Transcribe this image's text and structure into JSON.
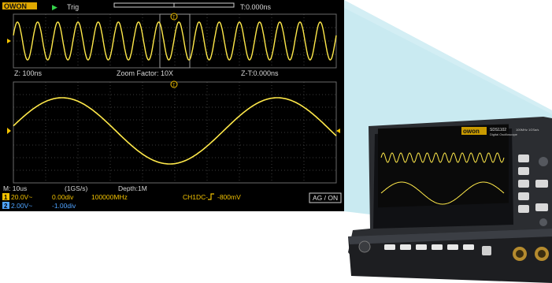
{
  "brand": "OWON",
  "top_bar": {
    "run_state": "▶",
    "trigger_label": "Trig",
    "time_offset": "T:0.000ns"
  },
  "zoom_bar": {
    "z_timebase": "Z: 100ns",
    "zoom_factor": "Zoom Factor: 10X",
    "z_time": "Z-T:0.000ns"
  },
  "status": {
    "main_timebase": "M: 10us",
    "sample_rate": "(1GS/s)",
    "depth": "Depth:1M",
    "ch1": {
      "index": "1",
      "volts": "20.0V~",
      "offset": "0.00div",
      "freq": "100000MHz"
    },
    "ch2": {
      "index": "2",
      "volts": "2.00V~",
      "offset": "-1.00div"
    },
    "trigger_info": "CH1DC-",
    "trigger_level": "-800mV",
    "mode": "AG / ON"
  },
  "device": {
    "logo": "owon",
    "model": "SDS1102",
    "subtitle": "Digital Oscilloscope",
    "spec": "100MHz 1GSa/s"
  },
  "colors": {
    "trace": "#ffe94a",
    "ch1": "#f2c200",
    "ch2": "#4fa3ff",
    "grid": "#3c3c3c",
    "callout": "#bfe6ee"
  },
  "signal": {
    "zoom_panel_cycles": 16,
    "main_panel_cycles": 1.5
  }
}
